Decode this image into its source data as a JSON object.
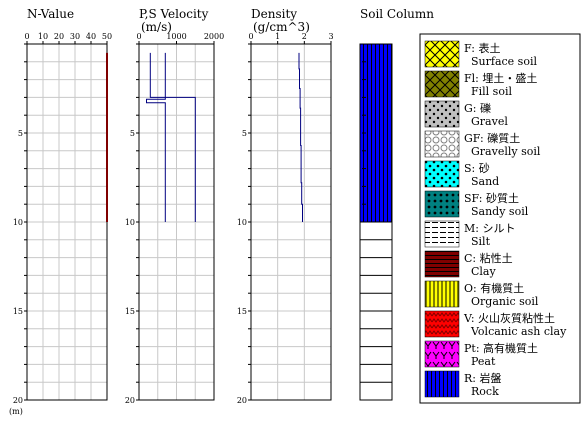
{
  "chart_data": {
    "type": "borehole-log",
    "depth_unit": "(m)",
    "depth_ticks": [
      0,
      5,
      10,
      15,
      20
    ],
    "depth_range": [
      0,
      20
    ],
    "grid_step_m": 1,
    "panels": [
      {
        "key": "n_value",
        "title": "N-Value",
        "unit": "",
        "xlim": [
          0,
          50
        ],
        "xticks": [
          0,
          10,
          20,
          30,
          40,
          50
        ],
        "series": [
          {
            "color": "#800000",
            "points": [
              [
                50,
                0.5
              ],
              [
                50,
                10
              ]
            ]
          }
        ]
      },
      {
        "key": "ps_velocity",
        "title": "P,S Velocity",
        "unit": "(m/s)",
        "xlim": [
          0,
          2000
        ],
        "xticks": [
          0,
          1000,
          2000
        ],
        "series": [
          {
            "color": "#000080",
            "points": [
              [
                300,
                0.5
              ],
              [
                300,
                3
              ],
              [
                1500,
                3
              ],
              [
                1500,
                10
              ]
            ]
          },
          {
            "color": "#000080",
            "points": [
              [
                700,
                0.5
              ],
              [
                700,
                3.1
              ],
              [
                200,
                3.1
              ],
              [
                200,
                3.3
              ],
              [
                700,
                3.3
              ],
              [
                700,
                10
              ]
            ]
          }
        ]
      },
      {
        "key": "density",
        "title": "Density",
        "unit": "(g/cm^3)",
        "xlim": [
          0,
          3
        ],
        "xticks": [
          0,
          1,
          2,
          3
        ],
        "series": [
          {
            "color": "#000080",
            "points": [
              [
                1.8,
                0.5
              ],
              [
                1.8,
                1.4
              ],
              [
                1.82,
                1.4
              ],
              [
                1.82,
                2.5
              ],
              [
                1.84,
                2.5
              ],
              [
                1.84,
                3.6
              ],
              [
                1.86,
                3.6
              ],
              [
                1.86,
                5.7
              ],
              [
                1.88,
                5.7
              ],
              [
                1.88,
                7.8
              ],
              [
                1.9,
                7.8
              ],
              [
                1.9,
                9
              ],
              [
                1.93,
                9
              ],
              [
                1.93,
                10
              ]
            ]
          }
        ]
      }
    ],
    "soil_column": {
      "title": "Soil Column",
      "layers": [
        {
          "top": 0,
          "bottom": 10,
          "code": "R"
        }
      ]
    }
  },
  "legend": [
    {
      "code": "F",
      "label_jp": "F: 表土",
      "label_en": "Surface soil",
      "fill": "#ffff00",
      "fg": "#000000"
    },
    {
      "code": "Fl",
      "label_jp": "Fl: 埋土・盛土",
      "label_en": "Fill soil",
      "fill": "#808000",
      "fg": "#000000"
    },
    {
      "code": "G",
      "label_jp": "G: 礫",
      "label_en": "Gravel",
      "fill": "#c0c0c0",
      "fg": "#000000"
    },
    {
      "code": "GF",
      "label_jp": "GF: 礫質土",
      "label_en": "Gravelly soil",
      "fill": "#ffffff",
      "fg": "#808080"
    },
    {
      "code": "S",
      "label_jp": "S: 砂",
      "label_en": "Sand",
      "fill": "#00ffff",
      "fg": "#000000"
    },
    {
      "code": "SF",
      "label_jp": "SF: 砂質土",
      "label_en": "Sandy soil",
      "fill": "#008080",
      "fg": "#000000"
    },
    {
      "code": "M",
      "label_jp": "M: シルト",
      "label_en": "Silt",
      "fill": "#ffffff",
      "fg": "#000000"
    },
    {
      "code": "C",
      "label_jp": "C: 粘性土",
      "label_en": "Clay",
      "fill": "#800000",
      "fg": "#000000"
    },
    {
      "code": "O",
      "label_jp": "O: 有機質土",
      "label_en": "Organic soil",
      "fill": "#ffff00",
      "fg": "#000000"
    },
    {
      "code": "V",
      "label_jp": "V: 火山灰質粘性土",
      "label_en": "Volcanic ash clay",
      "fill": "#ff0000",
      "fg": "#800000"
    },
    {
      "code": "Pt",
      "label_jp": "Pt: 高有機質土",
      "label_en": "Peat",
      "fill": "#ff00ff",
      "fg": "#000000"
    },
    {
      "code": "R",
      "label_jp": "R: 岩盤",
      "label_en": "Rock",
      "fill": "#0000ff",
      "fg": "#000000"
    }
  ]
}
